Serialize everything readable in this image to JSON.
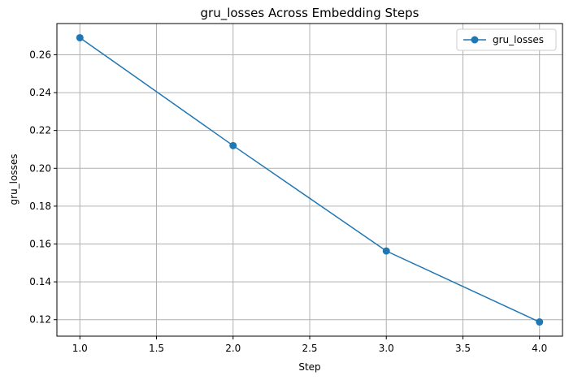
{
  "chart_data": {
    "type": "line",
    "title": "gru_losses Across Embedding Steps",
    "xlabel": "Step",
    "ylabel": "gru_losses",
    "x": [
      1.0,
      2.0,
      3.0,
      4.0
    ],
    "series": [
      {
        "name": "gru_losses",
        "values": [
          0.269,
          0.212,
          0.1563,
          0.1188
        ],
        "color": "#1f77b4",
        "marker": "circle"
      }
    ],
    "xlim": [
      0.85,
      4.15
    ],
    "ylim": [
      0.1113,
      0.2765
    ],
    "xticks": [
      "1.0",
      "1.5",
      "2.0",
      "2.5",
      "3.0",
      "3.5",
      "4.0"
    ],
    "yticks": [
      "0.12",
      "0.14",
      "0.16",
      "0.18",
      "0.20",
      "0.22",
      "0.24",
      "0.26"
    ],
    "grid": true,
    "legend": "top-right"
  }
}
